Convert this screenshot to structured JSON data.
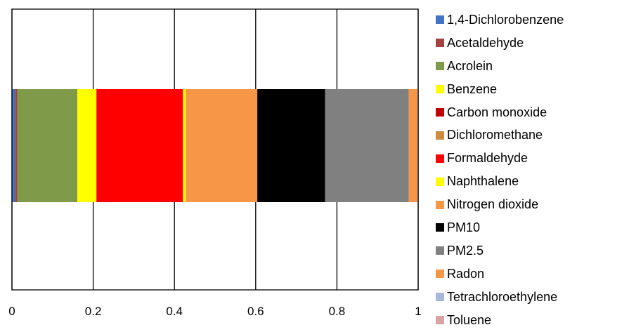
{
  "chart_data": {
    "type": "bar",
    "orientation": "horizontal",
    "stacked": true,
    "categories": [
      ""
    ],
    "xlim": [
      0,
      1
    ],
    "x_ticks": [
      0,
      0.2,
      0.4,
      0.6,
      0.8,
      1
    ],
    "x_tick_labels": [
      "0",
      "0.2",
      "0.4",
      "0.6",
      "0.8",
      "1"
    ],
    "grid": "vertical",
    "legend_position": "right",
    "series": [
      {
        "name": "1,4-Dichlorobenzene",
        "color": "#4472C4",
        "values": [
          0.008
        ]
      },
      {
        "name": "Acetaldehyde",
        "color": "#A5423F",
        "values": [
          0.005
        ]
      },
      {
        "name": "Acrolein",
        "color": "#7F9A48",
        "values": [
          0.148
        ]
      },
      {
        "name": "Benzene",
        "color": "#FFFF00",
        "values": [
          0.047
        ]
      },
      {
        "name": "Carbon monoxide",
        "color": "#C00000",
        "values": [
          0.0
        ]
      },
      {
        "name": "Dichloromethane",
        "color": "#D08A3E",
        "values": [
          0.0
        ]
      },
      {
        "name": "Formaldehyde",
        "color": "#FF0000",
        "values": [
          0.213
        ]
      },
      {
        "name": "Naphthalene",
        "color": "#FFFF00",
        "values": [
          0.007
        ]
      },
      {
        "name": "Nitrogen dioxide",
        "color": "#F79646",
        "values": [
          0.176
        ]
      },
      {
        "name": "PM10",
        "color": "#000000",
        "values": [
          0.167
        ]
      },
      {
        "name": "PM2.5",
        "color": "#808080",
        "values": [
          0.206
        ]
      },
      {
        "name": "Radon",
        "color": "#F79646",
        "values": [
          0.021
        ]
      },
      {
        "name": "Tetrachloroethylene",
        "color": "#A9B8DA",
        "values": [
          0.001
        ]
      },
      {
        "name": "Toluene",
        "color": "#D9A3A3",
        "values": [
          0.001
        ]
      }
    ]
  }
}
